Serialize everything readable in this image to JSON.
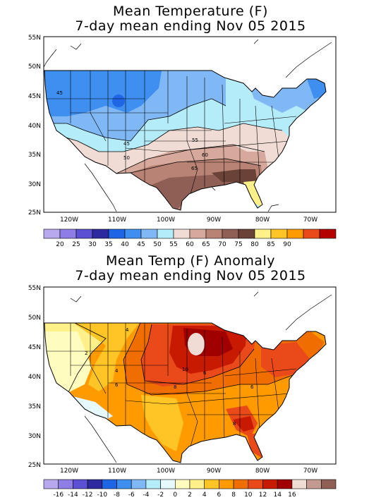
{
  "top_panel": {
    "title_line1": "Mean Temperature (F)",
    "title_line2": "7-day mean ending Nov 05 2015",
    "lat_labels": [
      "55N",
      "50N",
      "45N",
      "40N",
      "35N",
      "30N",
      "25N"
    ],
    "lon_labels": [
      "120W",
      "110W",
      "100W",
      "90W",
      "80W",
      "70W"
    ],
    "contour_labels": [
      "45",
      "45",
      "50",
      "55",
      "60",
      "65"
    ],
    "colorbar": {
      "colors": [
        "#b8a9ee",
        "#8f7de6",
        "#5b4fd4",
        "#2c2a9e",
        "#1f66e6",
        "#3f8ff0",
        "#7fb8f5",
        "#b5ecfa",
        "#f0dcd5",
        "#d7a99c",
        "#b88275",
        "#8f5f55",
        "#6b4238",
        "#fff08a",
        "#ffc426",
        "#ff9a00",
        "#ea4a1a",
        "#b30000"
      ],
      "labels": [
        "20",
        "25",
        "30",
        "35",
        "40",
        "45",
        "50",
        "55",
        "60",
        "65",
        "70",
        "75",
        "80",
        "85",
        "90"
      ]
    }
  },
  "bottom_panel": {
    "title_line1": "Mean Temp (F) Anomaly",
    "title_line2": "7-day mean ending Nov 05 2015",
    "lat_labels": [
      "55N",
      "50N",
      "45N",
      "40N",
      "35N",
      "30N",
      "25N"
    ],
    "lon_labels": [
      "120W",
      "110W",
      "100W",
      "90W",
      "80W",
      "70W"
    ],
    "contour_labels": [
      "4",
      "2",
      "4",
      "6",
      "10",
      "6",
      "8",
      "6",
      "8"
    ],
    "colorbar": {
      "colors": [
        "#b8a9ee",
        "#8f7de6",
        "#5b4fd4",
        "#2c2a9e",
        "#1f66e6",
        "#3f8ff0",
        "#7fb8f5",
        "#b5ecfa",
        "#e6fafd",
        "#fffcc0",
        "#fff08a",
        "#ffc426",
        "#ff9a00",
        "#f06e00",
        "#ea4a1a",
        "#c81a00",
        "#a00000",
        "#f0dcd5",
        "#c29a90",
        "#8f5f55"
      ],
      "labels": [
        "-16",
        "-14",
        "-12",
        "-10",
        "-8",
        "-6",
        "-4",
        "-2",
        "0",
        "2",
        "4",
        "6",
        "8",
        "10",
        "12",
        "14",
        "16"
      ]
    }
  }
}
